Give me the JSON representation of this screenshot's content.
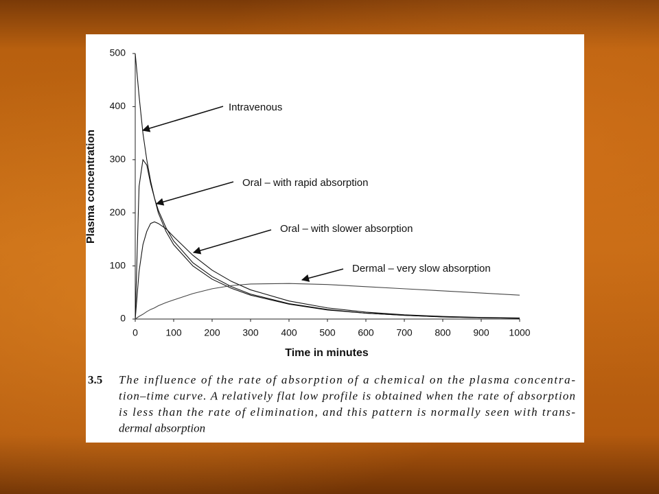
{
  "chart_data": {
    "type": "line",
    "xlabel": "Time in minutes",
    "ylabel": "Plasma concentration",
    "x": [
      0,
      10,
      20,
      30,
      40,
      50,
      60,
      80,
      100,
      150,
      200,
      250,
      300,
      400,
      500,
      600,
      700,
      800,
      900,
      1000
    ],
    "series": [
      {
        "name": "Intravenous",
        "color": "#111111",
        "values": [
          500,
          420,
          350,
          300,
          260,
          228,
          200,
          165,
          140,
          100,
          75,
          58,
          45,
          28,
          17,
          11,
          7,
          4,
          2.5,
          1.5
        ]
      },
      {
        "name": "Oral – with rapid absorption",
        "color": "#111111",
        "values": [
          0,
          250,
          300,
          290,
          255,
          228,
          205,
          172,
          147,
          106,
          80,
          61,
          47,
          29,
          18,
          11,
          7,
          4,
          2.5,
          1.5
        ]
      },
      {
        "name": "Oral – with slower absorption",
        "color": "#111111",
        "values": [
          0,
          90,
          140,
          165,
          180,
          183,
          180,
          170,
          155,
          120,
          92,
          71,
          55,
          34,
          21,
          13,
          8,
          5,
          3,
          2
        ]
      },
      {
        "name": "Dermal – very slow absorption",
        "color": "#444444",
        "values": [
          0,
          5,
          9,
          14,
          18,
          21,
          25,
          31,
          36,
          48,
          57,
          63,
          66,
          67,
          65,
          61,
          57,
          53,
          49,
          45
        ]
      }
    ],
    "xlim": [
      0,
      1000
    ],
    "xticks": [
      0,
      100,
      200,
      300,
      400,
      500,
      600,
      700,
      800,
      900,
      1000
    ],
    "ylim": [
      0,
      500
    ],
    "yticks": [
      0,
      100,
      200,
      300,
      400,
      500
    ],
    "caption": {
      "number": "3.5",
      "lines": [
        "The influence of the rate of absorption of a chemical on the plasma concentra-",
        "tion–time curve. A relatively flat low profile is obtained when the rate of absorption",
        "is less than the rate of elimination, and this pattern is normally seen with trans-",
        "dermal absorption"
      ]
    }
  }
}
